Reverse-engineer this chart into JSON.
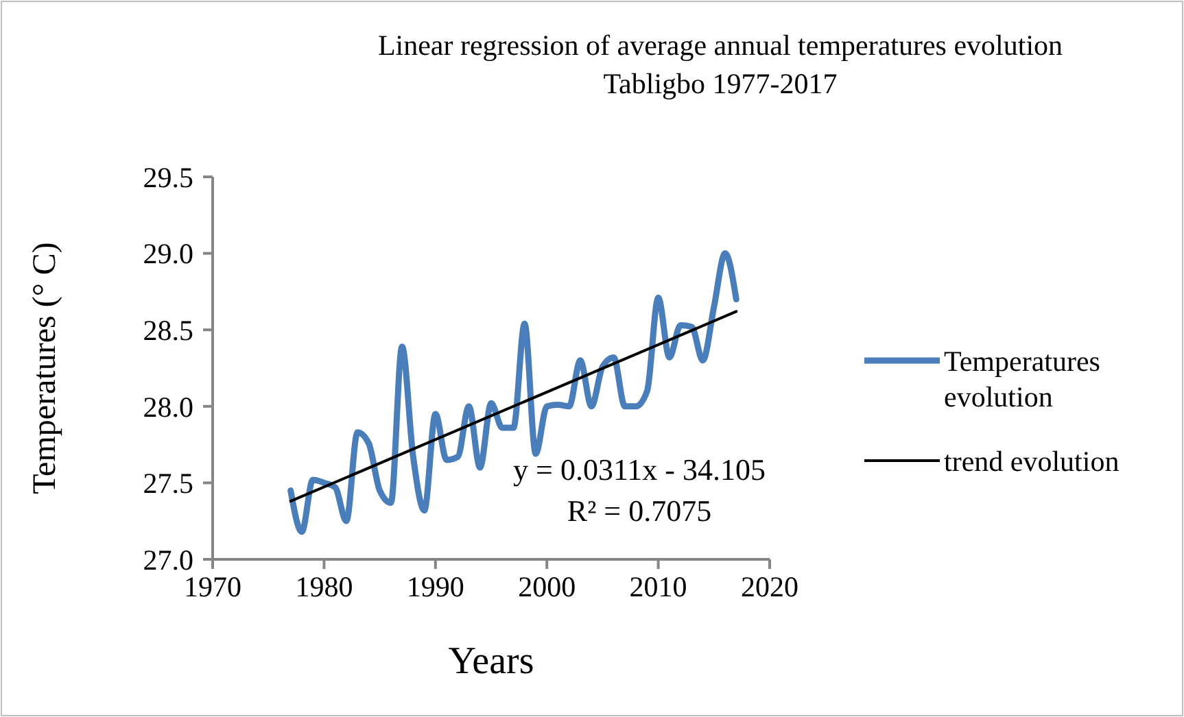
{
  "chart_data": {
    "type": "line",
    "title": "Linear regression of average annual temperatures     evolution",
    "subtitle": "Tabligbo 1977-2017",
    "xlabel": "Years",
    "ylabel": "Temperatures   (° C)",
    "x": [
      1977,
      1978,
      1979,
      1980,
      1981,
      1982,
      1983,
      1984,
      1985,
      1986,
      1987,
      1988,
      1989,
      1990,
      1991,
      1992,
      1993,
      1994,
      1995,
      1996,
      1997,
      1998,
      1999,
      2000,
      2001,
      2002,
      2003,
      2004,
      2005,
      2006,
      2007,
      2008,
      2009,
      2010,
      2011,
      2012,
      2013,
      2014,
      2015,
      2016,
      2017
    ],
    "series": [
      {
        "name": "Temperatures evolution",
        "color": "#4a7ebb",
        "values": [
          27.45,
          27.18,
          27.52,
          27.5,
          27.47,
          27.25,
          27.83,
          27.76,
          27.45,
          27.37,
          28.39,
          27.67,
          27.32,
          27.95,
          27.65,
          27.67,
          28.0,
          27.6,
          28.02,
          27.86,
          27.86,
          28.54,
          27.69,
          28.0,
          28.01,
          28.0,
          28.3,
          28.0,
          28.26,
          28.32,
          28.0,
          28.0,
          28.1,
          28.71,
          28.32,
          28.53,
          28.52,
          28.3,
          28.65,
          29.0,
          28.7
        ]
      },
      {
        "name": "trend evolution",
        "color": "#000000",
        "x": [
          1977,
          2017
        ],
        "values": [
          27.38,
          28.62
        ]
      }
    ],
    "xlim": [
      1970,
      2020
    ],
    "xticks": [
      1970,
      1980,
      1990,
      2000,
      2010,
      2020
    ],
    "ylim": [
      27.0,
      29.5
    ],
    "yticks": [
      {
        "value": 27,
        "label": "27.0"
      },
      {
        "value": 27.5,
        "label": "27.5"
      },
      {
        "value": 28,
        "label": "28.0"
      },
      {
        "value": 28.5,
        "label": "28.5"
      },
      {
        "value": 29,
        "label": "29.0"
      },
      {
        "value": 29.5,
        "label": "29.5"
      }
    ],
    "annotations": [
      "y = 0.0311x - 34.105",
      "R² = 0.7075"
    ],
    "legend": "right",
    "grid": false
  }
}
